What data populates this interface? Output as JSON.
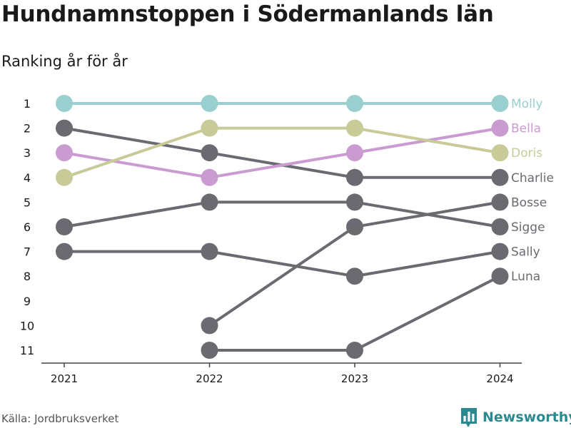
{
  "header": {
    "title": "Hundnamnstoppen i Södermanlands län",
    "subtitle": "Ranking år för år"
  },
  "footer": {
    "source": "Källa: Jordbruksverket",
    "brand": "Newsworthy",
    "brand_icon": "bar-chart-logo-icon"
  },
  "colors": {
    "Molly": "#99cfcf",
    "Bella": "#c99bd0",
    "Doris": "#c8ca98",
    "default": "#6b6a70",
    "brand": "#2b8a8f"
  },
  "chart_data": {
    "type": "line",
    "subtype": "bump",
    "x": [
      "2021",
      "2022",
      "2023",
      "2024"
    ],
    "y_ticks": [
      "1",
      "2",
      "3",
      "4",
      "5",
      "6",
      "7",
      "8",
      "9",
      "10",
      "11"
    ],
    "y_inverted": true,
    "ylim": [
      1,
      11
    ],
    "grid": false,
    "series": [
      {
        "name": "Molly",
        "values": [
          1,
          1,
          1,
          1
        ]
      },
      {
        "name": "Bella",
        "values": [
          3,
          4,
          3,
          2
        ]
      },
      {
        "name": "Doris",
        "values": [
          4,
          2,
          2,
          3
        ]
      },
      {
        "name": "Charlie",
        "values": [
          2,
          3,
          4,
          4
        ]
      },
      {
        "name": "Bosse",
        "values": [
          null,
          10,
          6,
          5
        ]
      },
      {
        "name": "Sigge",
        "values": [
          6,
          5,
          5,
          6
        ]
      },
      {
        "name": "Sally",
        "values": [
          7,
          7,
          8,
          7
        ]
      },
      {
        "name": "Luna",
        "values": [
          null,
          11,
          11,
          8
        ]
      }
    ]
  }
}
